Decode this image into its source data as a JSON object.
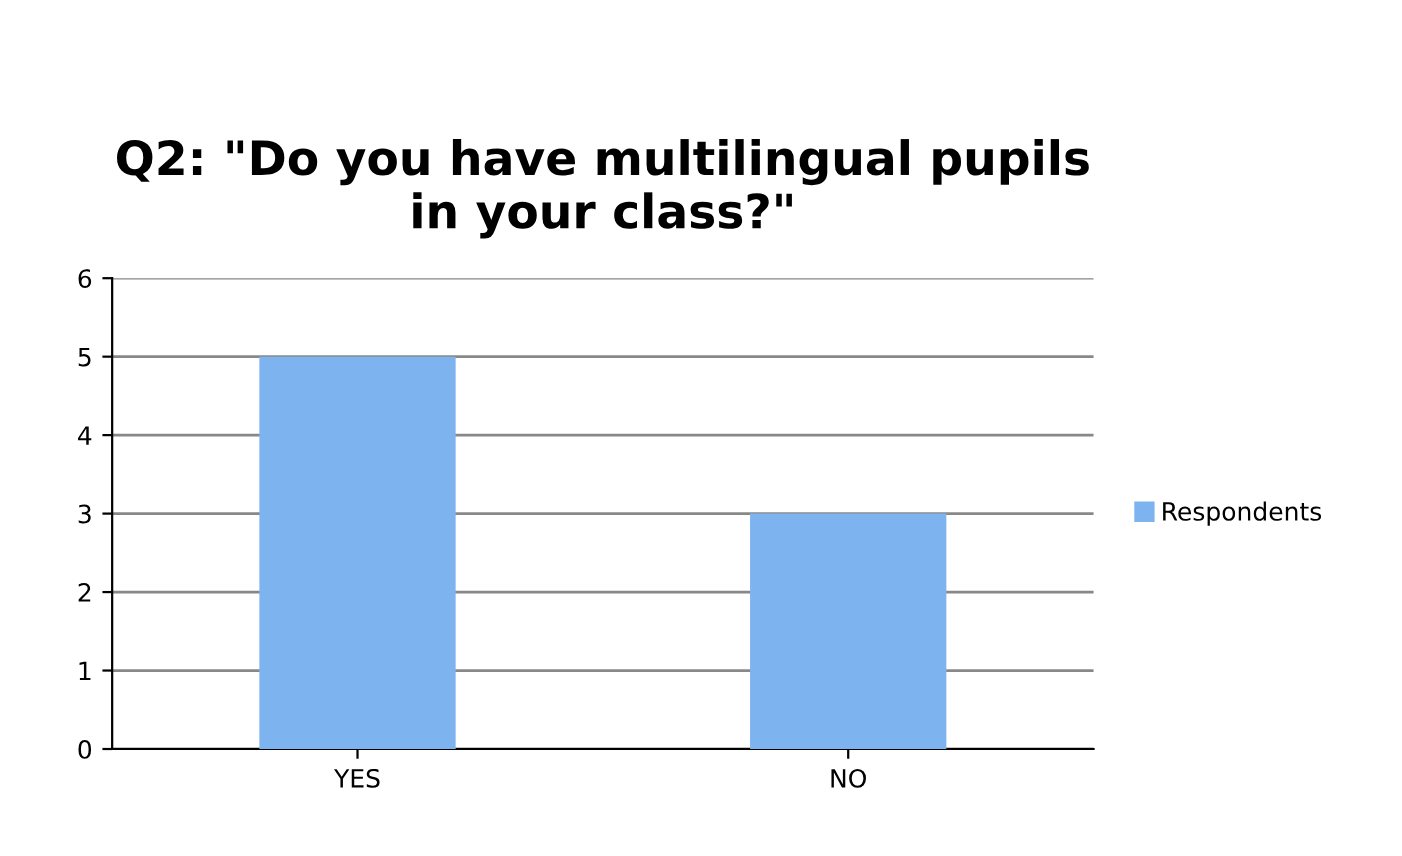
{
  "chart_data": {
    "type": "bar",
    "title": "Q2: \"Do you have multilingual pupils\nin your class?\"",
    "categories": [
      "YES",
      "NO"
    ],
    "series": [
      {
        "name": "Respondents",
        "color": "#7db3ee",
        "values": [
          5,
          3
        ]
      }
    ],
    "ylim": [
      0,
      6
    ],
    "yticks": [
      0,
      1,
      2,
      3,
      4,
      5,
      6
    ],
    "grid": "y",
    "legend": "right"
  }
}
